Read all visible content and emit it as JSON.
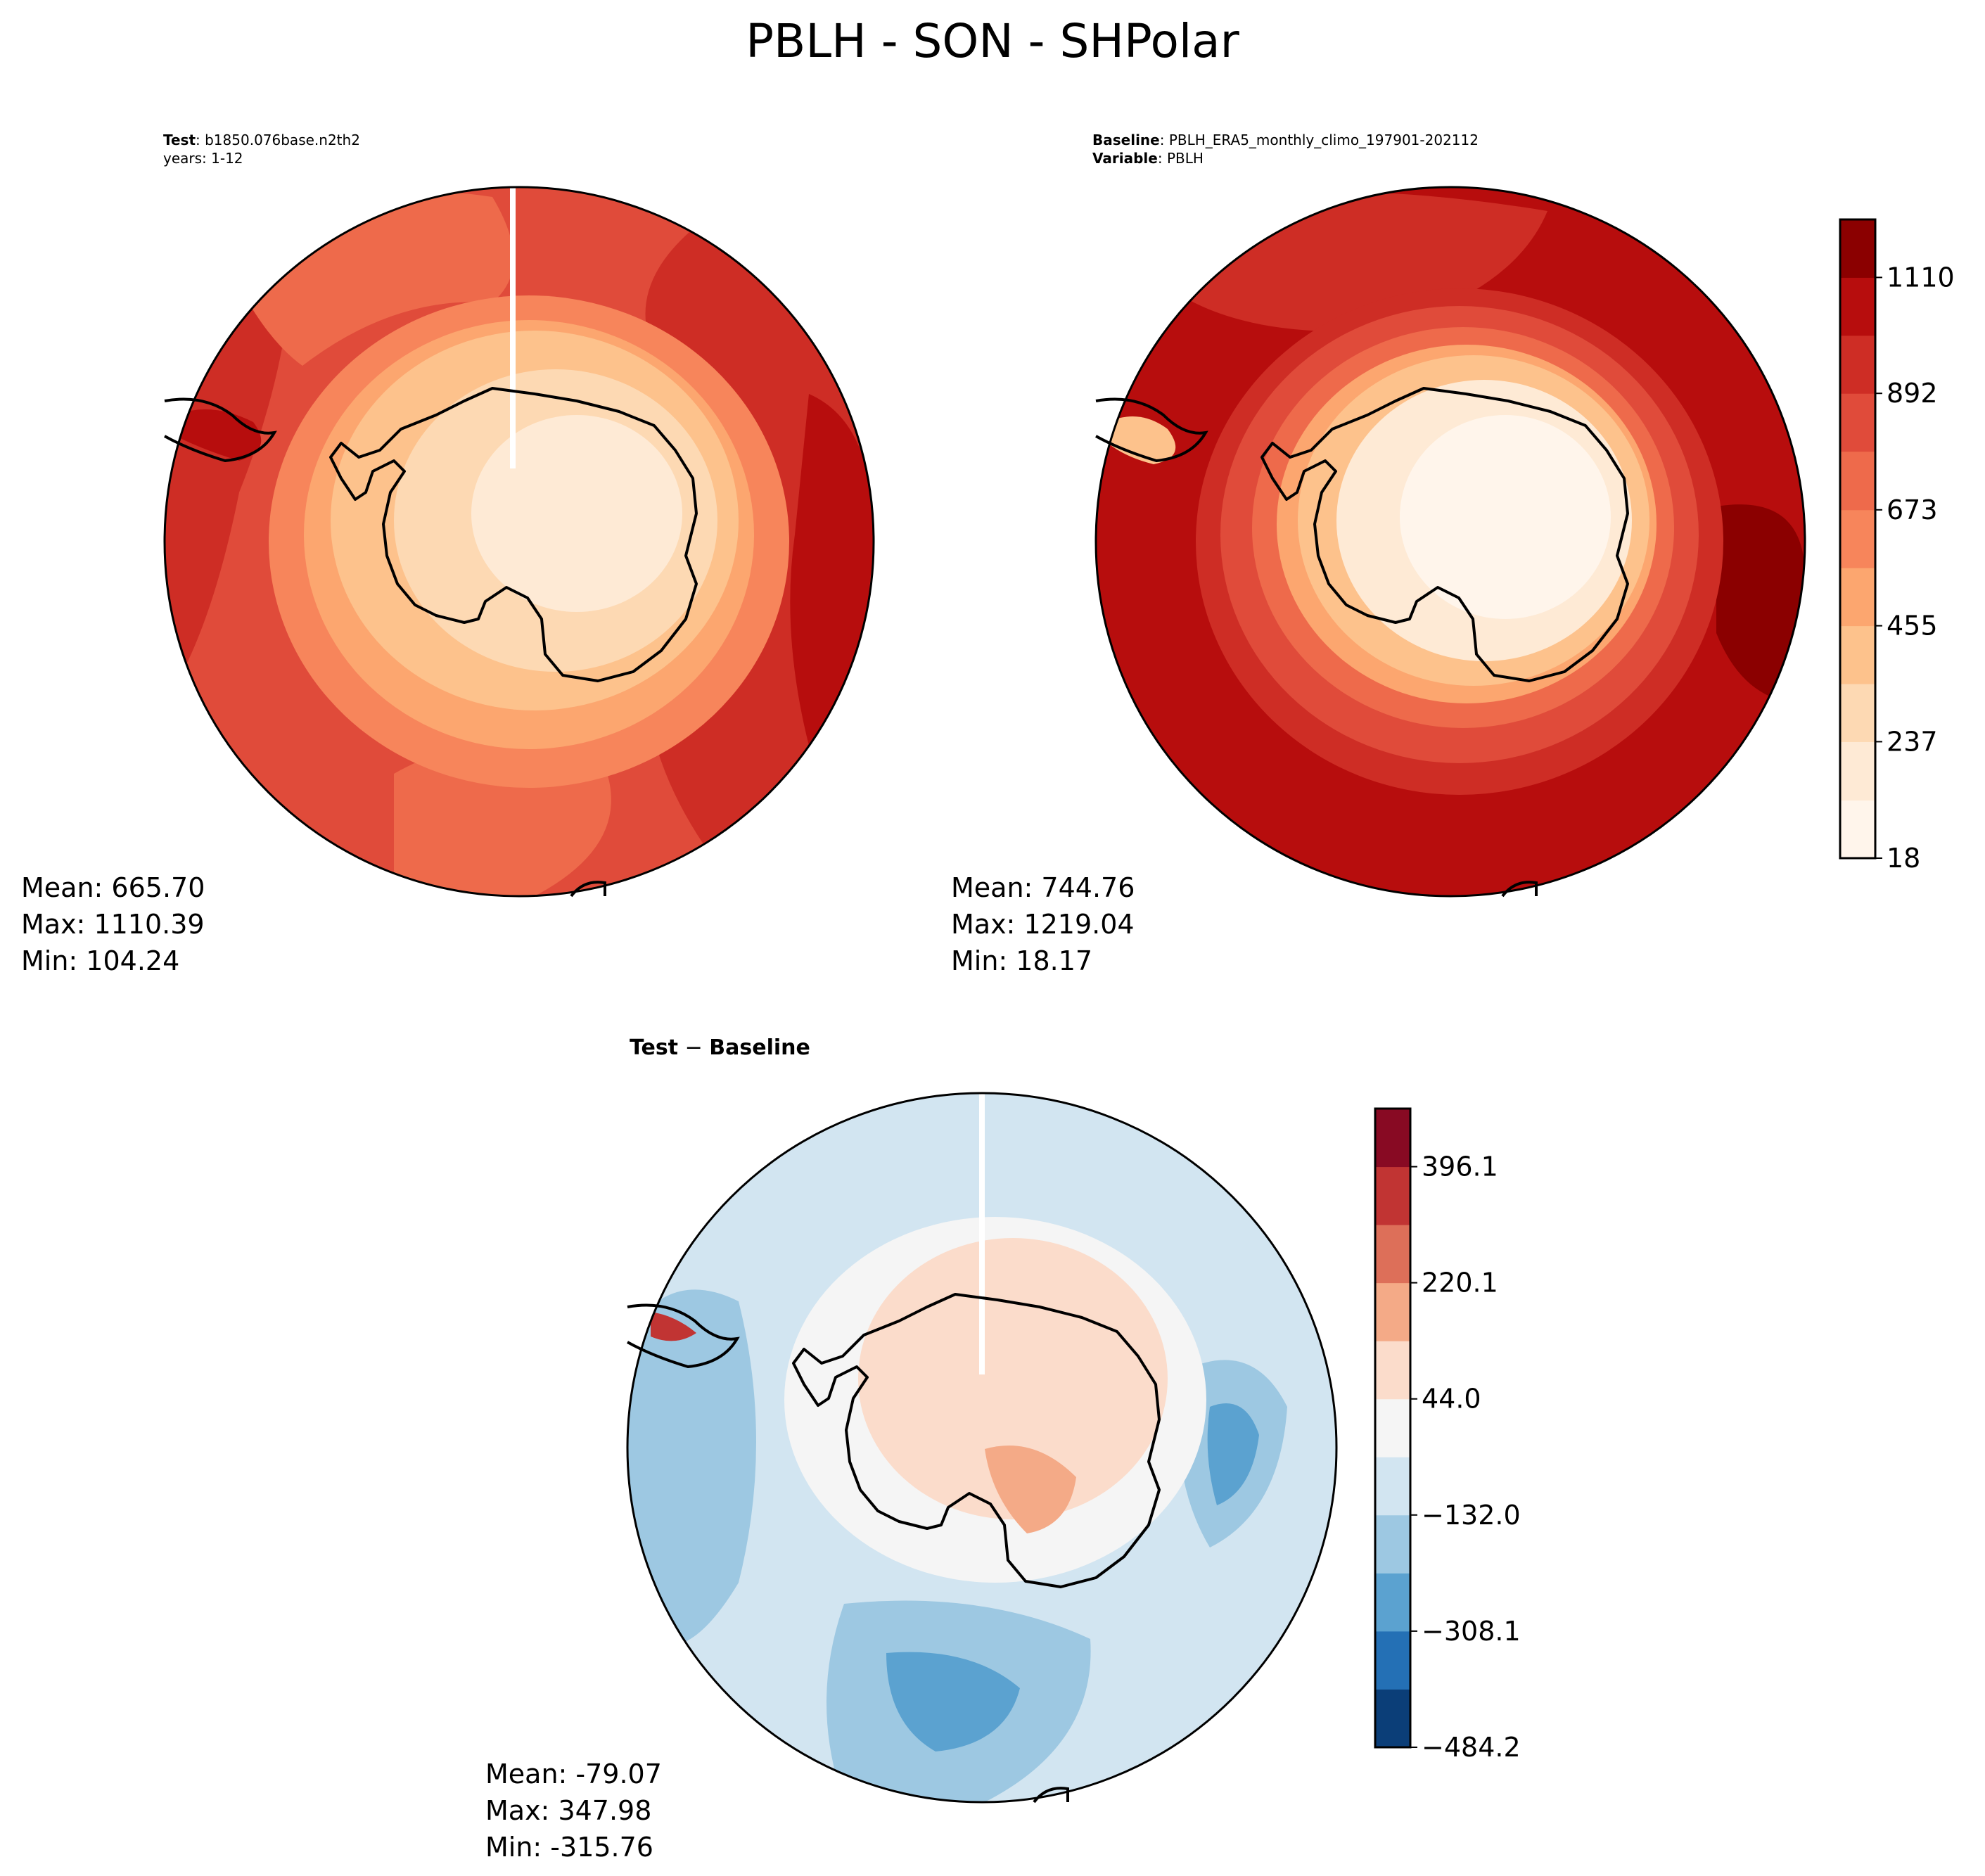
{
  "figure": {
    "title": "PBLH - SON - SHPolar"
  },
  "panels": {
    "test": {
      "label_key": "Test",
      "label_value": ": b1850.076base.n2th2",
      "line2": "years: 1-12",
      "stats": {
        "mean": "Mean: 665.70",
        "max": "Max: 1110.39",
        "min": "Min: 104.24"
      }
    },
    "baseline": {
      "label_key": "Baseline",
      "label_value": ": PBLH_ERA5_monthly_climo_197901-202112",
      "line2_key": "Variable",
      "line2_value": ": PBLH",
      "stats": {
        "mean": "Mean: 744.76",
        "max": "Max: 1219.04",
        "min": "Min: 18.17"
      }
    },
    "diff": {
      "title_a": "Test",
      "title_sep": " − ",
      "title_b": "Baseline",
      "stats": {
        "mean": "Mean: -79.07",
        "max": "Max: 347.98",
        "min": "Min: -315.76"
      }
    }
  },
  "chart_data": [
    {
      "type": "heatmap",
      "name": "Test",
      "projection": "south polar stereographic",
      "colormap": "Reds",
      "stats": {
        "mean": 665.7,
        "max": 1110.39,
        "min": 104.24
      }
    },
    {
      "type": "heatmap",
      "name": "Baseline",
      "projection": "south polar stereographic",
      "colormap": "Reds",
      "stats": {
        "mean": 744.76,
        "max": 1219.04,
        "min": 18.17
      },
      "colorbar": {
        "ticks": [
          "18",
          "237",
          "455",
          "673",
          "892",
          "1110"
        ],
        "levels": [
          18,
          127,
          237,
          346,
          455,
          564,
          673,
          783,
          892,
          1001,
          1110,
          1219
        ],
        "colors": [
          "#fff5eb",
          "#feead5",
          "#fdd9b3",
          "#fdc28c",
          "#fca66f",
          "#f7855b",
          "#ee6a4b",
          "#e04b3a",
          "#ce2d25",
          "#b70d0d",
          "#8b0000"
        ]
      }
    },
    {
      "type": "heatmap",
      "name": "Test − Baseline",
      "projection": "south polar stereographic",
      "colormap": "RdBu_r",
      "stats": {
        "mean": -79.07,
        "max": 347.98,
        "min": -315.76
      },
      "colorbar": {
        "ticks": [
          "−484.2",
          "−308.1",
          "−132.0",
          "44.0",
          "220.1",
          "396.1"
        ],
        "levels": [
          -484.2,
          -396.1,
          -308.1,
          -220.1,
          -132.0,
          -44.0,
          44.0,
          132.0,
          220.1,
          308.1,
          396.1,
          484.2
        ],
        "colors": [
          "#0b3e78",
          "#2470b5",
          "#5ba2d0",
          "#9dc8e2",
          "#d2e5f1",
          "#f5f5f5",
          "#fbdccb",
          "#f4aa87",
          "#dd6f59",
          "#c13433",
          "#880a23"
        ]
      }
    }
  ]
}
